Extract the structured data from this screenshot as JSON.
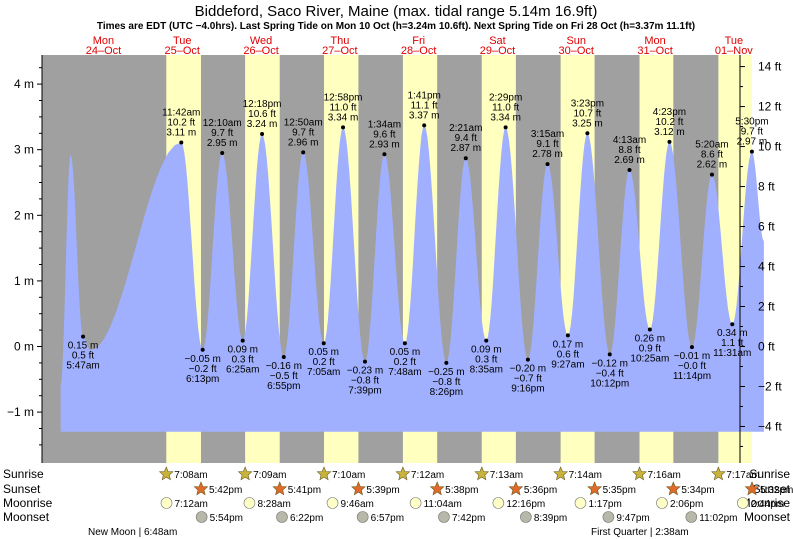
{
  "title": "Biddeford, Saco River, Maine (max. tidal range 5.14m 16.9ft)",
  "subtitle": "Times are EDT (UTC −4.0hrs). Last Spring Tide on Mon 10 Oct (h=3.24m 10.6ft). Next Spring Tide on Fri 28 Oct (h=3.37m 11.1ft)",
  "colors": {
    "night": "#a0a0a0",
    "day": "#ffffc0",
    "tide": "#a0b0ff",
    "date_label": "#e00000",
    "sunrise_star": "#c8b43c",
    "sunset_star": "#e06a28",
    "moonrise": "#ffffc8",
    "moonset": "#b8b8a8"
  },
  "days": [
    {
      "weekday": "Mon",
      "date": "24–Oct"
    },
    {
      "weekday": "Tue",
      "date": "25–Oct"
    },
    {
      "weekday": "Wed",
      "date": "26–Oct"
    },
    {
      "weekday": "Thu",
      "date": "27–Oct"
    },
    {
      "weekday": "Fri",
      "date": "28–Oct"
    },
    {
      "weekday": "Sat",
      "date": "29–Oct"
    },
    {
      "weekday": "Sun",
      "date": "30–Oct"
    },
    {
      "weekday": "Mon",
      "date": "31–Oct"
    },
    {
      "weekday": "Tue",
      "date": "01–Nov"
    }
  ],
  "chart_data": {
    "type": "area",
    "y_left_unit": "m",
    "y_right_unit": "ft",
    "ylim_m": [
      -1.75,
      4.4
    ],
    "left_ticks": [
      "−1 m",
      "0 m",
      "1 m",
      "2 m",
      "3 m",
      "4 m"
    ],
    "right_ticks": [
      "−4 ft",
      "−2 ft",
      "0 ft",
      "2 ft",
      "4 ft",
      "6 ft",
      "8 ft",
      "10 ft",
      "12 ft",
      "14 ft"
    ],
    "extra_peaks": [
      {
        "day": 0,
        "t": 0.083,
        "m": 2.92
      },
      {
        "day": 0,
        "t": 0.335,
        "m": -0.06
      }
    ],
    "tides": [
      {
        "type": "low",
        "day": 0,
        "time": "5:47 am",
        "m": 0.15,
        "m_label": "0.15 m",
        "ft_label": "0.5 ft"
      },
      {
        "type": "high",
        "day": 1,
        "time": "11:42 am",
        "m": 3.11,
        "m_label": "3.11 m",
        "ft_label": "10.2 ft"
      },
      {
        "type": "low",
        "day": 1,
        "time": "6:13 pm",
        "m": -0.05,
        "m_label": "−0.05 m",
        "ft_label": "−0.2 ft"
      },
      {
        "type": "high",
        "day": 2,
        "time": "12:10 am",
        "m": 2.95,
        "m_label": "2.95 m",
        "ft_label": "9.7 ft"
      },
      {
        "type": "low",
        "day": 2,
        "time": "6:25 am",
        "m": 0.09,
        "m_label": "0.09 m",
        "ft_label": "0.3 ft"
      },
      {
        "type": "high",
        "day": 2,
        "time": "12:18 pm",
        "m": 3.24,
        "m_label": "3.24 m",
        "ft_label": "10.6 ft"
      },
      {
        "type": "low",
        "day": 2,
        "time": "6:55 pm",
        "m": -0.16,
        "m_label": "−0.16 m",
        "ft_label": "−0.5 ft"
      },
      {
        "type": "high",
        "day": 3,
        "time": "12:50 am",
        "m": 2.96,
        "m_label": "2.96 m",
        "ft_label": "9.7 ft"
      },
      {
        "type": "low",
        "day": 3,
        "time": "7:05 am",
        "m": 0.05,
        "m_label": "0.05 m",
        "ft_label": "0.2 ft"
      },
      {
        "type": "high",
        "day": 3,
        "time": "12:58 pm",
        "m": 3.34,
        "m_label": "3.34 m",
        "ft_label": "11.0 ft"
      },
      {
        "type": "low",
        "day": 3,
        "time": "7:39 pm",
        "m": -0.23,
        "m_label": "−0.23 m",
        "ft_label": "−0.8 ft"
      },
      {
        "type": "high",
        "day": 4,
        "time": "1:34 am",
        "m": 2.93,
        "m_label": "2.93 m",
        "ft_label": "9.6 ft"
      },
      {
        "type": "low",
        "day": 4,
        "time": "7:48 am",
        "m": 0.05,
        "m_label": "0.05 m",
        "ft_label": "0.2 ft"
      },
      {
        "type": "high",
        "day": 4,
        "time": "1:41 pm",
        "m": 3.37,
        "m_label": "3.37 m",
        "ft_label": "11.1 ft"
      },
      {
        "type": "low",
        "day": 4,
        "time": "8:26 pm",
        "m": -0.25,
        "m_label": "−0.25 m",
        "ft_label": "−0.8 ft"
      },
      {
        "type": "high",
        "day": 5,
        "time": "2:21 am",
        "m": 2.87,
        "m_label": "2.87 m",
        "ft_label": "9.4 ft"
      },
      {
        "type": "low",
        "day": 5,
        "time": "8:35 am",
        "m": 0.09,
        "m_label": "0.09 m",
        "ft_label": "0.3 ft"
      },
      {
        "type": "high",
        "day": 5,
        "time": "2:29 pm",
        "m": 3.34,
        "m_label": "3.34 m",
        "ft_label": "11.0 ft"
      },
      {
        "type": "low",
        "day": 5,
        "time": "9:16 pm",
        "m": -0.2,
        "m_label": "−0.20 m",
        "ft_label": "−0.7 ft"
      },
      {
        "type": "high",
        "day": 6,
        "time": "3:15 am",
        "m": 2.78,
        "m_label": "2.78 m",
        "ft_label": "9.1 ft"
      },
      {
        "type": "low",
        "day": 6,
        "time": "9:27 am",
        "m": 0.17,
        "m_label": "0.17 m",
        "ft_label": "0.6 ft"
      },
      {
        "type": "high",
        "day": 6,
        "time": "3:23 pm",
        "m": 3.25,
        "m_label": "3.25 m",
        "ft_label": "10.7 ft"
      },
      {
        "type": "low",
        "day": 6,
        "time": "10:12 pm",
        "m": -0.12,
        "m_label": "−0.12 m",
        "ft_label": "−0.4 ft"
      },
      {
        "type": "high",
        "day": 7,
        "time": "4:13 am",
        "m": 2.69,
        "m_label": "2.69 m",
        "ft_label": "8.8 ft"
      },
      {
        "type": "low",
        "day": 7,
        "time": "10:25 am",
        "m": 0.26,
        "m_label": "0.26 m",
        "ft_label": "0.9 ft"
      },
      {
        "type": "high",
        "day": 7,
        "time": "4:23 pm",
        "m": 3.12,
        "m_label": "3.12 m",
        "ft_label": "10.2 ft"
      },
      {
        "type": "low",
        "day": 7,
        "time": "11:14 pm",
        "m": -0.01,
        "m_label": "−0.01 m",
        "ft_label": "−0.0 ft"
      },
      {
        "type": "high",
        "day": 8,
        "time": "5:20 am",
        "m": 2.62,
        "m_label": "2.62 m",
        "ft_label": "8.6 ft"
      },
      {
        "type": "low",
        "day": 8,
        "time": "11:31 am",
        "m": 0.34,
        "m_label": "0.34 m",
        "ft_label": "1.1 ft"
      },
      {
        "type": "high",
        "day": 8,
        "time": "5:30 pm",
        "m": 2.97,
        "m_label": "2.97 m",
        "ft_label": "9.7 ft"
      }
    ],
    "daylight": [
      {
        "day": 1,
        "rise": "7:08",
        "set": "17:42"
      },
      {
        "day": 2,
        "rise": "7:09",
        "set": "17:41"
      },
      {
        "day": 3,
        "rise": "7:10",
        "set": "17:39"
      },
      {
        "day": 4,
        "rise": "7:12",
        "set": "17:38"
      },
      {
        "day": 5,
        "rise": "7:13",
        "set": "17:36"
      },
      {
        "day": 6,
        "rise": "7:14",
        "set": "17:35"
      },
      {
        "day": 7,
        "rise": "7:16",
        "set": "17:34"
      },
      {
        "day": 8,
        "rise": "7:17",
        "set": "17:32"
      }
    ]
  },
  "bottom": {
    "row_labels": [
      "Sunrise",
      "Sunset",
      "Moonrise",
      "Moonset"
    ],
    "sunrise": [
      {
        "day": 1,
        "t": "7:08",
        "label": "7:08am"
      },
      {
        "day": 2,
        "t": "7:09",
        "label": "7:09am"
      },
      {
        "day": 3,
        "t": "7:10",
        "label": "7:10am"
      },
      {
        "day": 4,
        "t": "7:12",
        "label": "7:12am"
      },
      {
        "day": 5,
        "t": "7:13",
        "label": "7:13am"
      },
      {
        "day": 6,
        "t": "7:14",
        "label": "7:14am"
      },
      {
        "day": 7,
        "t": "7:16",
        "label": "7:16am"
      },
      {
        "day": 8,
        "t": "7:17",
        "label": "7:17am"
      }
    ],
    "sunset": [
      {
        "day": 1,
        "t": "17:42",
        "label": "5:42pm"
      },
      {
        "day": 2,
        "t": "17:41",
        "label": "5:41pm"
      },
      {
        "day": 3,
        "t": "17:39",
        "label": "5:39pm"
      },
      {
        "day": 4,
        "t": "17:38",
        "label": "5:38pm"
      },
      {
        "day": 5,
        "t": "17:36",
        "label": "5:36pm"
      },
      {
        "day": 6,
        "t": "17:35",
        "label": "5:35pm"
      },
      {
        "day": 7,
        "t": "17:34",
        "label": "5:34pm"
      },
      {
        "day": 8,
        "t": "17:32",
        "label": "5:32pm"
      }
    ],
    "moonrise": [
      {
        "day": 1,
        "t": "7:12",
        "label": "7:12am"
      },
      {
        "day": 2,
        "t": "8:28",
        "label": "8:28am"
      },
      {
        "day": 3,
        "t": "9:46",
        "label": "9:46am"
      },
      {
        "day": 4,
        "t": "11:04",
        "label": "11:04am"
      },
      {
        "day": 5,
        "t": "12:16",
        "label": "12:16pm"
      },
      {
        "day": 6,
        "t": "13:17",
        "label": "1:17pm"
      },
      {
        "day": 7,
        "t": "14:06",
        "label": "2:06pm"
      },
      {
        "day": 8,
        "t": "14:44",
        "label": "2:44pm"
      }
    ],
    "moonset": [
      {
        "day": 1,
        "t": "17:54",
        "label": "5:54pm"
      },
      {
        "day": 2,
        "t": "18:22",
        "label": "6:22pm"
      },
      {
        "day": 3,
        "t": "18:57",
        "label": "6:57pm"
      },
      {
        "day": 4,
        "t": "19:42",
        "label": "7:42pm"
      },
      {
        "day": 5,
        "t": "20:39",
        "label": "8:39pm"
      },
      {
        "day": 6,
        "t": "21:47",
        "label": "9:47pm"
      },
      {
        "day": 7,
        "t": "23:02",
        "label": "11:02pm"
      }
    ],
    "new_moon": "New Moon | 6:48am",
    "first_quarter": "First Quarter | 2:38am"
  }
}
